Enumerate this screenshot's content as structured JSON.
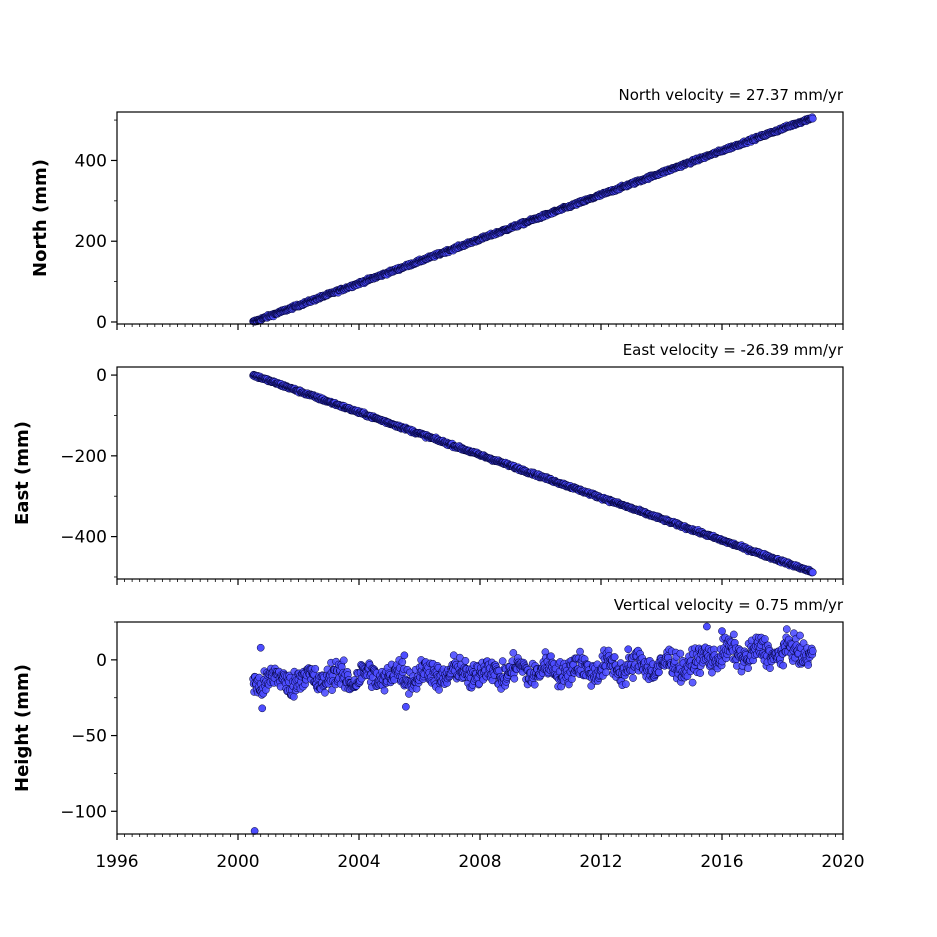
{
  "chart_data": {
    "type": "scatter",
    "x_axis": {
      "ticks": [
        1996,
        2000,
        2004,
        2008,
        2012,
        2016,
        2020
      ],
      "tick_labels": [
        "1996",
        "2000",
        "2004",
        "2008",
        "2012",
        "2016",
        "2020"
      ],
      "range": [
        1996,
        2020
      ]
    },
    "marker_color": "#4d4dff",
    "marker_edge": "#000033",
    "panels": [
      {
        "name": "north",
        "title": "North velocity = 27.37 mm/yr",
        "ylabel": "North (mm)",
        "ylim": [
          -5,
          520
        ],
        "yticks": [
          0,
          200,
          400
        ],
        "ytick_labels": [
          "0",
          "200",
          "400"
        ],
        "start": [
          2000.5,
          0
        ],
        "velocity": 27.37,
        "end": [
          2019.0,
          515
        ],
        "noise": 2.5
      },
      {
        "name": "east",
        "title": "East velocity = -26.39 mm/yr",
        "ylabel": "East (mm)",
        "ylim": [
          -505,
          20
        ],
        "yticks": [
          0,
          -200,
          -400
        ],
        "ytick_labels": [
          "0",
          "−200",
          "−400"
        ],
        "start": [
          2000.5,
          0
        ],
        "velocity": -26.39,
        "end": [
          2019.0,
          -495
        ],
        "noise": 2.5
      },
      {
        "name": "height",
        "title": "Vertical velocity = 0.75 mm/yr",
        "ylabel": "Height (mm)",
        "ylim": [
          -115,
          25
        ],
        "yticks": [
          0,
          -50,
          -100
        ],
        "ytick_labels": [
          "0",
          "−50",
          "−100"
        ],
        "start": [
          2000.5,
          -12
        ],
        "velocity": 0.75,
        "end": [
          2019.0,
          0
        ],
        "noise": 6,
        "outliers": [
          [
            2000.55,
            -113
          ],
          [
            2000.75,
            8
          ],
          [
            2000.8,
            -32
          ],
          [
            2005.5,
            3
          ],
          [
            2005.55,
            -31
          ],
          [
            2012.9,
            7
          ],
          [
            2015.5,
            22
          ],
          [
            2016.0,
            19
          ]
        ]
      }
    ]
  }
}
